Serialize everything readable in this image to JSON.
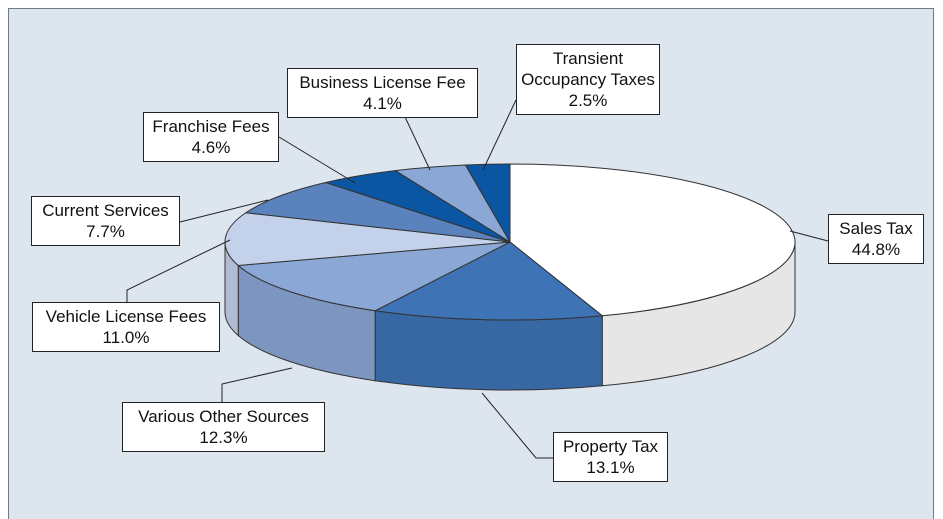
{
  "chart_data": {
    "type": "pie3d",
    "categories": [
      "Sales Tax",
      "Property Tax",
      "Various Other Sources",
      "Vehicle License Fees",
      "Current Services",
      "Franchise Fees",
      "Business License Fee",
      "Transient Occupancy Taxes"
    ],
    "values": [
      44.8,
      13.1,
      12.3,
      11.0,
      7.7,
      4.6,
      4.1,
      2.5
    ],
    "value_labels": [
      "44.8%",
      "13.1%",
      "12.3%",
      "11.0%",
      "7.7%",
      "4.6%",
      "4.1%",
      "2.5%"
    ],
    "colors": [
      "#ffffff",
      "#3e73b5",
      "#8aa7d5",
      "#c4d1eb",
      "#5a82bd",
      "#0a56a3",
      "#8aa7d5",
      "#0a56a3"
    ]
  }
}
